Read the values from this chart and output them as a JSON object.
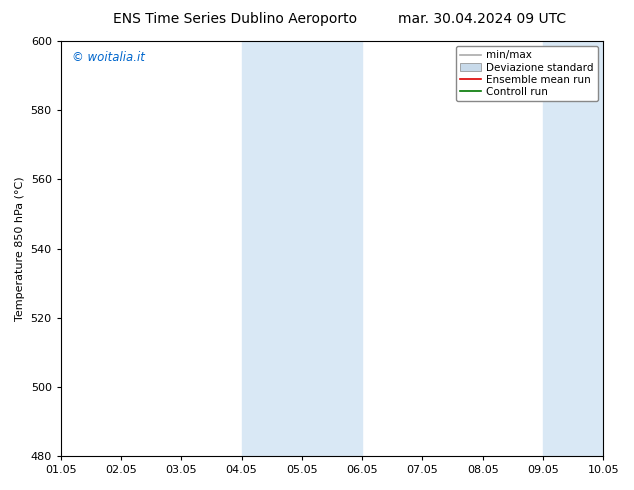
{
  "title_left": "ENS Time Series Dublino Aeroporto",
  "title_right": "mar. 30.04.2024 09 UTC",
  "ylabel": "Temperature 850 hPa (°C)",
  "ylim": [
    480,
    600
  ],
  "yticks": [
    480,
    500,
    520,
    540,
    560,
    580,
    600
  ],
  "xtick_labels": [
    "01.05",
    "02.05",
    "03.05",
    "04.05",
    "05.05",
    "06.05",
    "07.05",
    "08.05",
    "09.05",
    "10.05"
  ],
  "shaded_bands": [
    {
      "xstart": 3,
      "xend": 5,
      "color": "#d9e8f5"
    },
    {
      "xstart": 8,
      "xend": 10,
      "color": "#d9e8f5"
    }
  ],
  "watermark": "© woitalia.it",
  "watermark_color": "#0066cc",
  "legend_items": [
    {
      "label": "min/max",
      "color": "#aaaaaa",
      "lw": 1.2,
      "style": "-",
      "type": "line"
    },
    {
      "label": "Deviazione standard",
      "color": "#c8daea",
      "lw": 5,
      "style": "-",
      "type": "patch"
    },
    {
      "label": "Ensemble mean run",
      "color": "#dd0000",
      "lw": 1.2,
      "style": "-",
      "type": "line"
    },
    {
      "label": "Controll run",
      "color": "#007700",
      "lw": 1.2,
      "style": "-",
      "type": "line"
    }
  ],
  "bg_color": "#ffffff",
  "title_fontsize": 10,
  "ylabel_fontsize": 8,
  "tick_fontsize": 8,
  "legend_fontsize": 7.5,
  "watermark_fontsize": 8.5,
  "fig_width": 6.34,
  "fig_height": 4.9,
  "dpi": 100
}
